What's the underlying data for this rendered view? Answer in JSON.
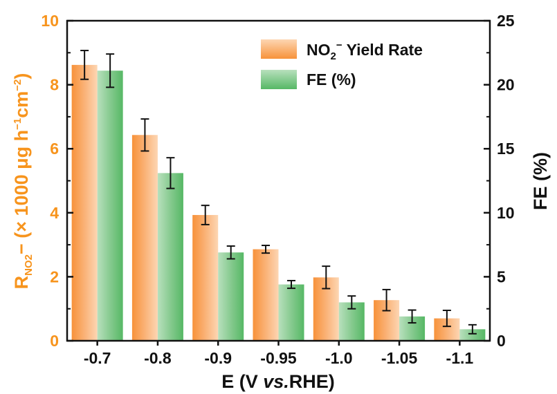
{
  "chart_data": {
    "type": "bar",
    "categories": [
      "-0.7",
      "-0.8",
      "-0.9",
      "-0.95",
      "-1.0",
      "-1.05",
      "-1.1"
    ],
    "xlabel": {
      "pre": "E (V ",
      "italic": "vs.",
      "post": "RHE)"
    },
    "ylabel_left": {
      "r": "R",
      "sub": "NO2",
      "rest": "− (× 1000 μg h",
      "sup1": "−1",
      "cm": "cm",
      "sup2": "−2",
      "close": ")"
    },
    "ylabel_right": "FE (%)",
    "ylim_left": [
      0,
      10
    ],
    "ylim_right": [
      0,
      25
    ],
    "yticks_left": [
      "0",
      "2",
      "4",
      "6",
      "8",
      "10"
    ],
    "yticks_right": [
      "0",
      "5",
      "10",
      "15",
      "20",
      "25"
    ],
    "series": [
      {
        "name": {
          "main": "NO",
          "sub": "2",
          "sup": "−",
          "rest": " Yield Rate"
        },
        "axis": "left",
        "color": "#f7943d",
        "values": [
          8.62,
          6.43,
          3.93,
          2.86,
          1.98,
          1.27,
          0.7
        ],
        "errors": [
          0.45,
          0.5,
          0.3,
          0.12,
          0.35,
          0.33,
          0.25
        ]
      },
      {
        "name": "FE (%)",
        "axis": "right",
        "color": "#5cbd6b",
        "values": [
          21.1,
          13.1,
          6.9,
          4.4,
          3.0,
          1.9,
          0.9
        ],
        "errors": [
          1.3,
          1.2,
          0.5,
          0.3,
          0.5,
          0.5,
          0.35
        ]
      }
    ],
    "legend_position": "top-right",
    "left_axis_color": "#f7941d",
    "right_axis_color": "#111111"
  }
}
